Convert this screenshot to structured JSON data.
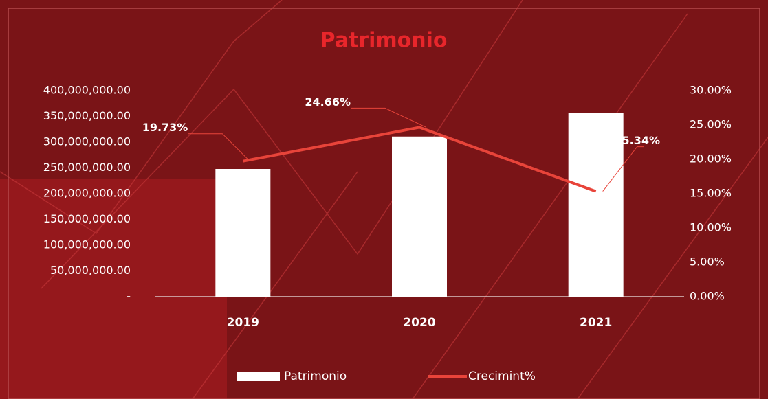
{
  "chart_data": {
    "type": "bar",
    "title": "Patrimonio",
    "categories": [
      "2019",
      "2020",
      "2021"
    ],
    "series": [
      {
        "name": "Patrimonio",
        "type": "bar",
        "color": "#ffffff",
        "values": [
          248000000,
          311000000,
          356000000
        ]
      },
      {
        "name": "Crecimint%",
        "type": "line",
        "axis": "y2",
        "color": "#e8443a",
        "values": [
          19.73,
          24.66,
          15.34
        ],
        "value_labels": [
          "19.73%",
          "24.66%",
          "15.34%"
        ]
      }
    ],
    "ylim": [
      0,
      400000000
    ],
    "yticks": [
      {
        "value": 0,
        "label": "-"
      },
      {
        "value": 50000000,
        "label": "50,000,000.00"
      },
      {
        "value": 100000000,
        "label": "100,000,000.00"
      },
      {
        "value": 150000000,
        "label": "150,000,000.00"
      },
      {
        "value": 200000000,
        "label": "200,000,000.00"
      },
      {
        "value": 250000000,
        "label": "250,000,000.00"
      },
      {
        "value": 300000000,
        "label": "300,000,000.00"
      },
      {
        "value": 350000000,
        "label": "350,000,000.00"
      },
      {
        "value": 400000000,
        "label": "400,000,000.00"
      }
    ],
    "y2lim": [
      0,
      30
    ],
    "y2ticks": [
      {
        "value": 0,
        "label": "0.00%"
      },
      {
        "value": 5,
        "label": "5.00%"
      },
      {
        "value": 10,
        "label": "10.00%"
      },
      {
        "value": 15,
        "label": "15.00%"
      },
      {
        "value": 20,
        "label": "20.00%"
      },
      {
        "value": 25,
        "label": "25.00%"
      },
      {
        "value": 30,
        "label": "30.00%"
      }
    ],
    "legend": "bottom"
  }
}
